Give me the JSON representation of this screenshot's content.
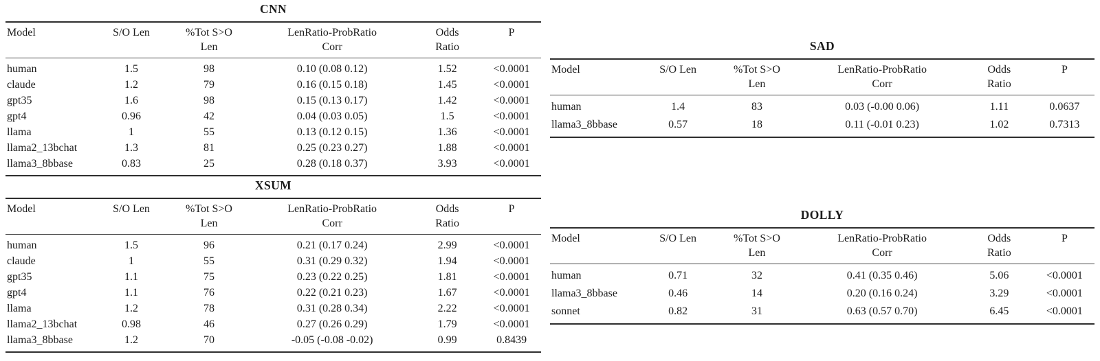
{
  "header": {
    "columns": [
      {
        "l1": "Model",
        "l2": ""
      },
      {
        "l1": "S/O Len",
        "l2": ""
      },
      {
        "l1": "%Tot S>O",
        "l2": "Len"
      },
      {
        "l1": "LenRatio-ProbRatio",
        "l2": "Corr"
      },
      {
        "l1": "Odds",
        "l2": "Ratio"
      },
      {
        "l1": "P",
        "l2": ""
      }
    ]
  },
  "tables": [
    {
      "title": "CNN",
      "rows": [
        [
          "human",
          "1.5",
          "98",
          "0.10 (0.08 0.12)",
          "1.52",
          "<0.0001"
        ],
        [
          "claude",
          "1.2",
          "79",
          "0.16 (0.15 0.18)",
          "1.45",
          "<0.0001"
        ],
        [
          "gpt35",
          "1.6",
          "98",
          "0.15 (0.13 0.17)",
          "1.42",
          "<0.0001"
        ],
        [
          "gpt4",
          "0.96",
          "42",
          "0.04 (0.03 0.05)",
          "1.5",
          "<0.0001"
        ],
        [
          "llama",
          "1",
          "55",
          "0.13 (0.12 0.15)",
          "1.36",
          "<0.0001"
        ],
        [
          "llama2_13bchat",
          "1.3",
          "81",
          "0.25 (0.23 0.27)",
          "1.88",
          "<0.0001"
        ],
        [
          "llama3_8bbase",
          "0.83",
          "25",
          "0.28 (0.18 0.37)",
          "3.93",
          "<0.0001"
        ]
      ]
    },
    {
      "title": "XSUM",
      "rows": [
        [
          "human",
          "1.5",
          "96",
          "0.21 (0.17 0.24)",
          "2.99",
          "<0.0001"
        ],
        [
          "claude",
          "1",
          "55",
          "0.31 (0.29 0.32)",
          "1.94",
          "<0.0001"
        ],
        [
          "gpt35",
          "1.1",
          "75",
          "0.23 (0.22 0.25)",
          "1.81",
          "<0.0001"
        ],
        [
          "gpt4",
          "1.1",
          "76",
          "0.22 (0.21 0.23)",
          "1.67",
          "<0.0001"
        ],
        [
          "llama",
          "1.2",
          "78",
          "0.31 (0.28 0.34)",
          "2.22",
          "<0.0001"
        ],
        [
          "llama2_13bchat",
          "0.98",
          "46",
          "0.27 (0.26 0.29)",
          "1.79",
          "<0.0001"
        ],
        [
          "llama3_8bbase",
          "1.2",
          "70",
          "-0.05 (-0.08 -0.02)",
          "0.99",
          "0.8439"
        ]
      ]
    },
    {
      "title": "SAD",
      "rows": [
        [
          "human",
          "1.4",
          "83",
          "0.03 (-0.00 0.06)",
          "1.11",
          "0.0637"
        ],
        [
          "llama3_8bbase",
          "0.57",
          "18",
          "0.11 (-0.01 0.23)",
          "1.02",
          "0.7313"
        ]
      ]
    },
    {
      "title": "DOLLY",
      "rows": [
        [
          "human",
          "0.71",
          "32",
          "0.41 (0.35 0.46)",
          "5.06",
          "<0.0001"
        ],
        [
          "llama3_8bbase",
          "0.46",
          "14",
          "0.20 (0.16 0.24)",
          "3.29",
          "<0.0001"
        ],
        [
          "sonnet",
          "0.82",
          "31",
          "0.63 (0.57 0.70)",
          "6.45",
          "<0.0001"
        ]
      ]
    }
  ]
}
